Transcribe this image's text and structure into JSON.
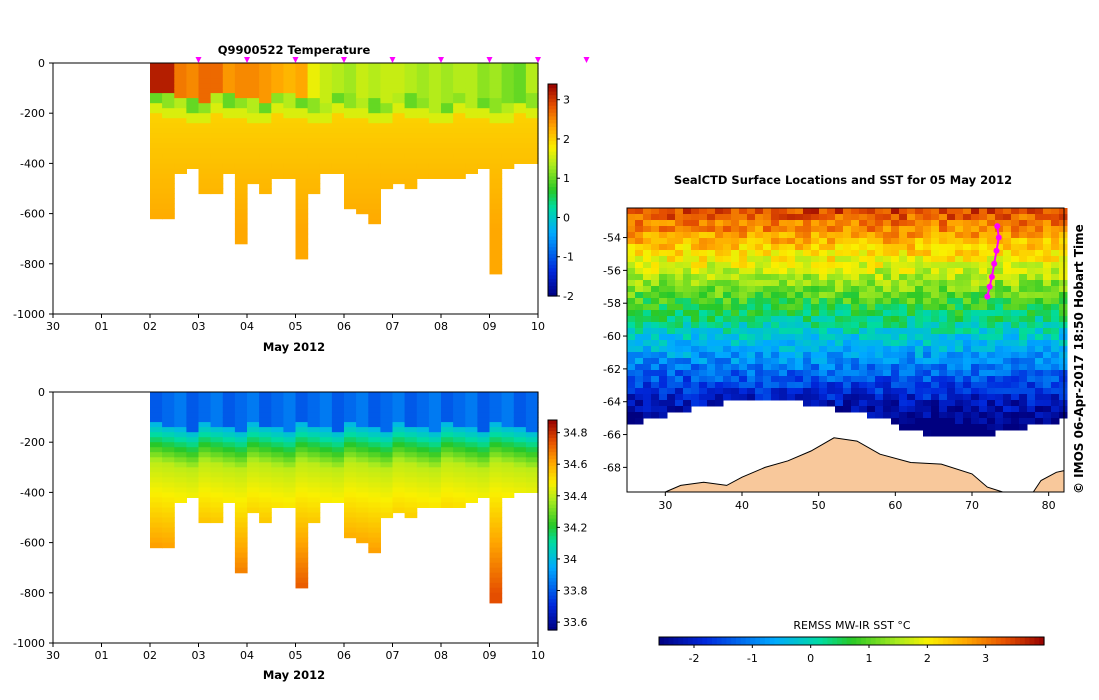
{
  "chart_data": [
    {
      "id": "temperature",
      "type": "heatmap",
      "title": "Q9900522  Temperature",
      "xlabel": "May 2012",
      "x_tick_labels": [
        "30",
        "01",
        "02",
        "03",
        "04",
        "05",
        "06",
        "07",
        "08",
        "09",
        "10"
      ],
      "x_range_days": [
        -1,
        9
      ],
      "y_tick_labels": [
        "0",
        "-200",
        "-400",
        "-600",
        "-800",
        "-1000"
      ],
      "y_ticks": [
        0,
        -200,
        -400,
        -600,
        -800,
        -1000
      ],
      "ylim": [
        -1000,
        0
      ],
      "colorbar": {
        "range": [
          -2,
          3.4
        ],
        "tick_labels": [
          "3",
          "2",
          "1",
          "0",
          "-1",
          "-2"
        ],
        "ticks": [
          3,
          2,
          1,
          0,
          -1,
          -2
        ]
      },
      "profile_days": [
        1.0,
        1.25,
        1.5,
        1.75,
        2.0,
        2.25,
        2.5,
        2.75,
        3.0,
        3.25,
        3.5,
        3.75,
        4.0,
        4.25,
        4.5,
        4.75,
        5.0,
        5.25,
        5.5,
        5.75,
        6.0,
        6.25,
        6.5,
        6.75,
        7.0,
        7.25,
        7.5,
        7.75,
        8.0,
        8.25,
        8.5,
        8.75
      ],
      "profile_width_days": 0.25,
      "max_depths": [
        610,
        610,
        440,
        420,
        520,
        520,
        440,
        710,
        480,
        510,
        460,
        460,
        780,
        520,
        440,
        440,
        580,
        600,
        630,
        500,
        480,
        500,
        460,
        460,
        450,
        450,
        440,
        420,
        830,
        420,
        400,
        400
      ],
      "surface_temps": [
        3.2,
        3.2,
        2.6,
        2.5,
        2.7,
        2.7,
        2.4,
        2.5,
        2.5,
        2.4,
        2.3,
        2.2,
        2.3,
        1.7,
        1.5,
        1.4,
        1.3,
        1.5,
        1.4,
        1.5,
        1.5,
        1.4,
        1.3,
        1.4,
        1.3,
        1.4,
        1.4,
        1.2,
        1.3,
        1.1,
        1.0,
        1.4
      ],
      "float_markers_days": [
        2,
        3,
        4,
        5,
        6,
        7,
        8,
        9,
        10
      ]
    },
    {
      "id": "salinity",
      "type": "heatmap",
      "title": "",
      "xlabel": "May 2012",
      "x_tick_labels": [
        "30",
        "01",
        "02",
        "03",
        "04",
        "05",
        "06",
        "07",
        "08",
        "09",
        "10"
      ],
      "y_tick_labels": [
        "0",
        "-200",
        "-400",
        "-600",
        "-800",
        "-1000"
      ],
      "y_ticks": [
        0,
        -200,
        -400,
        -600,
        -800,
        -1000
      ],
      "ylim": [
        -1000,
        0
      ],
      "colorbar": {
        "range": [
          33.55,
          34.88
        ],
        "tick_labels": [
          "34.8",
          "34.6",
          "34.4",
          "34.2",
          "34",
          "33.8",
          "33.6"
        ],
        "ticks": [
          34.8,
          34.6,
          34.4,
          34.2,
          34.0,
          33.8,
          33.6
        ]
      },
      "surface_salinity": 33.83,
      "deep_salinity": 34.75
    },
    {
      "id": "sst-map",
      "type": "heatmap",
      "title": "SealCTD Surface Locations and SST for 05 May 2012",
      "x_tick_labels": [
        "30",
        "40",
        "50",
        "60",
        "70",
        "80"
      ],
      "x_ticks": [
        30,
        40,
        50,
        60,
        70,
        80
      ],
      "y_tick_labels": [
        "-54",
        "-56",
        "-58",
        "-60",
        "-62",
        "-64",
        "-66",
        "-68"
      ],
      "y_ticks": [
        -54,
        -56,
        -58,
        -60,
        -62,
        -64,
        -66,
        -68
      ],
      "lon_range": [
        25,
        82
      ],
      "lat_range": [
        -69.5,
        -52.2
      ],
      "colorbar": {
        "label": "REMSS MW-IR SST °C",
        "range": [
          -2.6,
          4.0
        ],
        "tick_labels": [
          "-2",
          "-1",
          "0",
          "1",
          "2",
          "3"
        ],
        "ticks": [
          -2,
          -1,
          0,
          1,
          2,
          3
        ]
      },
      "track": [
        [
          72.0,
          -57.6
        ],
        [
          72.3,
          -57.0
        ],
        [
          72.6,
          -56.4
        ],
        [
          72.9,
          -55.6
        ],
        [
          73.2,
          -54.8
        ],
        [
          73.5,
          -54.0
        ],
        [
          73.3,
          -53.3
        ]
      ],
      "credit": "© IMOS 06-Apr-2017 18:50 Hobart Time"
    }
  ]
}
